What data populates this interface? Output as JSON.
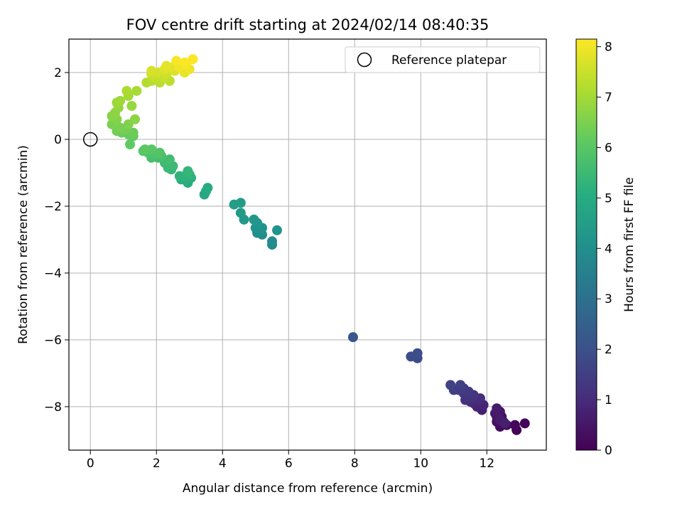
{
  "chart_data": {
    "type": "scatter",
    "title": "FOV centre drift starting at 2024/02/14 08:40:35",
    "xlabel": "Angular distance from reference (arcmin)",
    "ylabel": "Rotation from reference (arcmin)",
    "xlim": [
      -0.65,
      13.8
    ],
    "ylim": [
      -9.3,
      3.0
    ],
    "xticks": [
      0,
      2,
      4,
      6,
      8,
      10,
      12
    ],
    "yticks": [
      -8,
      -6,
      -4,
      -2,
      0,
      2
    ],
    "grid": true,
    "legend": {
      "position": "top-right",
      "entries": [
        "Reference platepar"
      ]
    },
    "reference_point": {
      "x": 0,
      "y": 0
    },
    "colorbar": {
      "label": "Hours from first FF file",
      "range": [
        0,
        8.15
      ],
      "ticks": [
        0,
        1,
        2,
        3,
        4,
        5,
        6,
        7,
        8
      ],
      "colormap": "viridis"
    },
    "points": [
      {
        "x": 12.9,
        "y": -8.7,
        "h": 0.05
      },
      {
        "x": 13.15,
        "y": -8.5,
        "h": 0.1
      },
      {
        "x": 12.85,
        "y": -8.55,
        "h": 0.15
      },
      {
        "x": 12.6,
        "y": -8.55,
        "h": 0.2
      },
      {
        "x": 12.4,
        "y": -8.6,
        "h": 0.25
      },
      {
        "x": 12.5,
        "y": -8.45,
        "h": 0.3
      },
      {
        "x": 12.3,
        "y": -8.45,
        "h": 0.35
      },
      {
        "x": 12.45,
        "y": -8.3,
        "h": 0.4
      },
      {
        "x": 12.3,
        "y": -8.3,
        "h": 0.45
      },
      {
        "x": 12.4,
        "y": -8.15,
        "h": 0.5
      },
      {
        "x": 12.25,
        "y": -8.2,
        "h": 0.55
      },
      {
        "x": 12.3,
        "y": -8.05,
        "h": 0.6
      },
      {
        "x": 12.4,
        "y": -8.4,
        "h": 0.65
      },
      {
        "x": 12.55,
        "y": -8.5,
        "h": 0.7
      },
      {
        "x": 11.85,
        "y": -8.1,
        "h": 0.75
      },
      {
        "x": 11.7,
        "y": -8.0,
        "h": 0.8
      },
      {
        "x": 11.9,
        "y": -7.95,
        "h": 0.85
      },
      {
        "x": 11.6,
        "y": -7.9,
        "h": 0.9
      },
      {
        "x": 11.5,
        "y": -7.85,
        "h": 0.95
      },
      {
        "x": 11.75,
        "y": -7.8,
        "h": 1.0
      },
      {
        "x": 11.8,
        "y": -7.75,
        "h": 1.05
      },
      {
        "x": 11.35,
        "y": -7.8,
        "h": 1.1
      },
      {
        "x": 11.55,
        "y": -7.75,
        "h": 1.15
      },
      {
        "x": 11.4,
        "y": -7.7,
        "h": 1.2
      },
      {
        "x": 11.6,
        "y": -7.65,
        "h": 1.25
      },
      {
        "x": 11.3,
        "y": -7.6,
        "h": 1.3
      },
      {
        "x": 11.45,
        "y": -7.55,
        "h": 1.35
      },
      {
        "x": 11.3,
        "y": -7.45,
        "h": 1.4
      },
      {
        "x": 11.15,
        "y": -7.5,
        "h": 1.45
      },
      {
        "x": 11.0,
        "y": -7.5,
        "h": 1.5
      },
      {
        "x": 11.2,
        "y": -7.35,
        "h": 1.55
      },
      {
        "x": 10.9,
        "y": -7.35,
        "h": 1.6
      },
      {
        "x": 9.9,
        "y": -6.55,
        "h": 1.85
      },
      {
        "x": 9.7,
        "y": -6.5,
        "h": 1.9
      },
      {
        "x": 9.9,
        "y": -6.4,
        "h": 1.95
      },
      {
        "x": 7.95,
        "y": -5.92,
        "h": 2.2
      },
      {
        "x": 5.5,
        "y": -3.15,
        "h": 3.85
      },
      {
        "x": 5.5,
        "y": -3.05,
        "h": 3.9
      },
      {
        "x": 5.2,
        "y": -2.85,
        "h": 3.95
      },
      {
        "x": 5.05,
        "y": -2.8,
        "h": 4.0
      },
      {
        "x": 5.15,
        "y": -2.75,
        "h": 4.05
      },
      {
        "x": 5.0,
        "y": -2.65,
        "h": 4.1
      },
      {
        "x": 5.2,
        "y": -2.65,
        "h": 4.15
      },
      {
        "x": 5.65,
        "y": -2.72,
        "h": 4.2
      },
      {
        "x": 5.05,
        "y": -2.5,
        "h": 4.25
      },
      {
        "x": 4.95,
        "y": -2.4,
        "h": 4.3
      },
      {
        "x": 4.65,
        "y": -2.4,
        "h": 4.35
      },
      {
        "x": 4.55,
        "y": -2.2,
        "h": 4.4
      },
      {
        "x": 4.35,
        "y": -1.95,
        "h": 4.45
      },
      {
        "x": 4.55,
        "y": -1.9,
        "h": 4.5
      },
      {
        "x": 3.45,
        "y": -1.65,
        "h": 4.9
      },
      {
        "x": 3.5,
        "y": -1.55,
        "h": 4.95
      },
      {
        "x": 3.55,
        "y": -1.45,
        "h": 5.0
      },
      {
        "x": 2.95,
        "y": -1.3,
        "h": 5.05
      },
      {
        "x": 2.75,
        "y": -1.2,
        "h": 5.1
      },
      {
        "x": 3.05,
        "y": -1.15,
        "h": 5.15
      },
      {
        "x": 2.85,
        "y": -1.1,
        "h": 5.2
      },
      {
        "x": 2.7,
        "y": -1.1,
        "h": 5.25
      },
      {
        "x": 3.0,
        "y": -1.05,
        "h": 5.3
      },
      {
        "x": 2.95,
        "y": -0.95,
        "h": 5.35
      },
      {
        "x": 2.45,
        "y": -0.9,
        "h": 5.4
      },
      {
        "x": 2.35,
        "y": -0.85,
        "h": 5.45
      },
      {
        "x": 2.5,
        "y": -0.8,
        "h": 5.5
      },
      {
        "x": 2.25,
        "y": -0.7,
        "h": 5.55
      },
      {
        "x": 2.4,
        "y": -0.6,
        "h": 5.6
      },
      {
        "x": 2.05,
        "y": -0.55,
        "h": 5.65
      },
      {
        "x": 1.85,
        "y": -0.55,
        "h": 5.7
      },
      {
        "x": 2.15,
        "y": -0.5,
        "h": 5.75
      },
      {
        "x": 1.95,
        "y": -0.45,
        "h": 5.8
      },
      {
        "x": 1.75,
        "y": -0.4,
        "h": 5.85
      },
      {
        "x": 2.1,
        "y": -0.4,
        "h": 5.9
      },
      {
        "x": 1.6,
        "y": -0.35,
        "h": 5.95
      },
      {
        "x": 1.85,
        "y": -0.3,
        "h": 6.0
      },
      {
        "x": 1.65,
        "y": -0.3,
        "h": 6.05
      },
      {
        "x": 1.2,
        "y": -0.15,
        "h": 6.1
      },
      {
        "x": 1.3,
        "y": 0.1,
        "h": 6.15
      },
      {
        "x": 1.15,
        "y": 0.15,
        "h": 6.2
      },
      {
        "x": 0.95,
        "y": 0.2,
        "h": 6.25
      },
      {
        "x": 1.3,
        "y": 0.2,
        "h": 6.3
      },
      {
        "x": 0.8,
        "y": 0.25,
        "h": 6.35
      },
      {
        "x": 1.05,
        "y": 0.3,
        "h": 6.4
      },
      {
        "x": 0.9,
        "y": 0.35,
        "h": 6.45
      },
      {
        "x": 0.65,
        "y": 0.45,
        "h": 6.5
      },
      {
        "x": 1.15,
        "y": 0.45,
        "h": 6.55
      },
      {
        "x": 0.8,
        "y": 0.6,
        "h": 6.6
      },
      {
        "x": 0.65,
        "y": 0.7,
        "h": 6.65
      },
      {
        "x": 1.35,
        "y": 0.6,
        "h": 6.7
      },
      {
        "x": 0.75,
        "y": 0.8,
        "h": 6.75
      },
      {
        "x": 0.85,
        "y": 0.95,
        "h": 6.8
      },
      {
        "x": 1.25,
        "y": 1.0,
        "h": 6.85
      },
      {
        "x": 0.8,
        "y": 1.1,
        "h": 6.9
      },
      {
        "x": 0.9,
        "y": 1.15,
        "h": 6.95
      },
      {
        "x": 1.15,
        "y": 1.3,
        "h": 7.0
      },
      {
        "x": 1.4,
        "y": 1.45,
        "h": 7.05
      },
      {
        "x": 1.1,
        "y": 1.45,
        "h": 7.1
      },
      {
        "x": 1.7,
        "y": 1.7,
        "h": 7.2
      },
      {
        "x": 1.85,
        "y": 1.75,
        "h": 7.25
      },
      {
        "x": 2.1,
        "y": 1.7,
        "h": 7.3
      },
      {
        "x": 2.4,
        "y": 1.75,
        "h": 7.35
      },
      {
        "x": 1.95,
        "y": 1.85,
        "h": 7.4
      },
      {
        "x": 2.2,
        "y": 1.85,
        "h": 7.45
      },
      {
        "x": 1.85,
        "y": 1.95,
        "h": 7.5
      },
      {
        "x": 2.3,
        "y": 1.95,
        "h": 7.55
      },
      {
        "x": 2.05,
        "y": 2.0,
        "h": 7.6
      },
      {
        "x": 1.85,
        "y": 2.05,
        "h": 7.65
      },
      {
        "x": 2.55,
        "y": 2.05,
        "h": 7.7
      },
      {
        "x": 2.25,
        "y": 2.1,
        "h": 7.75
      },
      {
        "x": 2.45,
        "y": 2.15,
        "h": 7.8
      },
      {
        "x": 2.3,
        "y": 2.2,
        "h": 7.85
      },
      {
        "x": 2.85,
        "y": 2.0,
        "h": 7.9
      },
      {
        "x": 3.0,
        "y": 2.1,
        "h": 7.95
      },
      {
        "x": 2.7,
        "y": 2.15,
        "h": 8.0
      },
      {
        "x": 2.9,
        "y": 2.25,
        "h": 8.05
      },
      {
        "x": 2.6,
        "y": 2.35,
        "h": 8.05
      },
      {
        "x": 2.85,
        "y": 2.3,
        "h": 8.1
      },
      {
        "x": 3.1,
        "y": 2.4,
        "h": 8.12
      }
    ]
  }
}
